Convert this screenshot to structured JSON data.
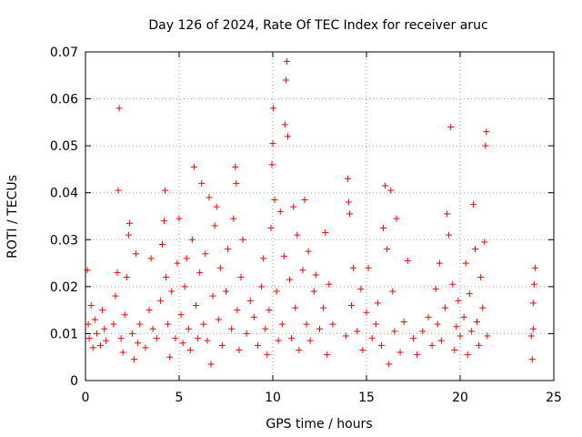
{
  "chart_data": {
    "type": "scatter",
    "title": "Day 126 of 2024, Rate Of TEC Index for receiver aruc",
    "xlabel": "GPS time / hours",
    "ylabel": "ROTI / TECUs",
    "xlim": [
      0,
      25
    ],
    "ylim": [
      0,
      0.07
    ],
    "xticks": [
      "0",
      "5",
      "10",
      "15",
      "20",
      "25"
    ],
    "yticks": [
      "0",
      "0.01",
      "0.02",
      "0.03",
      "0.04",
      "0.05",
      "0.06",
      "0.07"
    ],
    "grid": true,
    "marker": "plus",
    "color": "#ff0000",
    "series": [
      {
        "points": [
          [
            0.1,
            0.0235
          ],
          [
            0.15,
            0.012
          ],
          [
            0.2,
            0.009
          ],
          [
            0.3,
            0.016
          ],
          [
            0.4,
            0.007
          ],
          [
            0.5,
            0.013
          ],
          [
            0.6,
            0.01
          ],
          [
            0.8,
            0.0075
          ],
          [
            0.9,
            0.015
          ],
          [
            1.0,
            0.011
          ],
          [
            1.1,
            0.0085
          ],
          [
            1.5,
            0.012
          ],
          [
            1.6,
            0.018
          ],
          [
            1.7,
            0.023
          ],
          [
            1.75,
            0.0405
          ],
          [
            1.8,
            0.058
          ],
          [
            1.9,
            0.009
          ],
          [
            2.0,
            0.006
          ],
          [
            2.1,
            0.014
          ],
          [
            2.2,
            0.022
          ],
          [
            2.3,
            0.031
          ],
          [
            2.35,
            0.0335
          ],
          [
            2.5,
            0.01
          ],
          [
            2.6,
            0.0045
          ],
          [
            2.7,
            0.027
          ],
          [
            2.8,
            0.008
          ],
          [
            2.9,
            0.012
          ],
          [
            3.2,
            0.007
          ],
          [
            3.4,
            0.015
          ],
          [
            3.5,
            0.026
          ],
          [
            3.6,
            0.011
          ],
          [
            3.8,
            0.009
          ],
          [
            4.0,
            0.017
          ],
          [
            4.1,
            0.029
          ],
          [
            4.2,
            0.034
          ],
          [
            4.25,
            0.0405
          ],
          [
            4.3,
            0.022
          ],
          [
            4.4,
            0.012
          ],
          [
            4.5,
            0.005
          ],
          [
            4.6,
            0.019
          ],
          [
            4.8,
            0.009
          ],
          [
            4.9,
            0.025
          ],
          [
            5.0,
            0.0345
          ],
          [
            5.1,
            0.014
          ],
          [
            5.2,
            0.008
          ],
          [
            5.3,
            0.02
          ],
          [
            5.4,
            0.026
          ],
          [
            5.5,
            0.011
          ],
          [
            5.6,
            0.0065
          ],
          [
            5.7,
            0.03
          ],
          [
            5.8,
            0.0455
          ],
          [
            5.9,
            0.016
          ],
          [
            6.0,
            0.009
          ],
          [
            6.1,
            0.023
          ],
          [
            6.2,
            0.042
          ],
          [
            6.3,
            0.012
          ],
          [
            6.4,
            0.027
          ],
          [
            6.5,
            0.0085
          ],
          [
            6.6,
            0.039
          ],
          [
            6.7,
            0.0035
          ],
          [
            6.8,
            0.018
          ],
          [
            6.9,
            0.033
          ],
          [
            7.0,
            0.037
          ],
          [
            7.1,
            0.013
          ],
          [
            7.2,
            0.024
          ],
          [
            7.3,
            0.0075
          ],
          [
            7.5,
            0.019
          ],
          [
            7.6,
            0.028
          ],
          [
            7.8,
            0.011
          ],
          [
            7.9,
            0.0345
          ],
          [
            8.0,
            0.0455
          ],
          [
            8.05,
            0.042
          ],
          [
            8.1,
            0.015
          ],
          [
            8.2,
            0.0065
          ],
          [
            8.3,
            0.022
          ],
          [
            8.4,
            0.03
          ],
          [
            8.6,
            0.01
          ],
          [
            8.8,
            0.017
          ],
          [
            9.0,
            0.0135
          ],
          [
            9.2,
            0.0075
          ],
          [
            9.4,
            0.02
          ],
          [
            9.5,
            0.026
          ],
          [
            9.6,
            0.011
          ],
          [
            9.7,
            0.0055
          ],
          [
            9.8,
            0.015
          ],
          [
            9.9,
            0.0325
          ],
          [
            9.95,
            0.046
          ],
          [
            10.0,
            0.0505
          ],
          [
            10.02,
            0.058
          ],
          [
            10.1,
            0.0385
          ],
          [
            10.2,
            0.019
          ],
          [
            10.3,
            0.0085
          ],
          [
            10.4,
            0.036
          ],
          [
            10.5,
            0.012
          ],
          [
            10.6,
            0.0265
          ],
          [
            10.65,
            0.0545
          ],
          [
            10.7,
            0.064
          ],
          [
            10.75,
            0.068
          ],
          [
            10.8,
            0.052
          ],
          [
            10.9,
            0.0215
          ],
          [
            11.0,
            0.009
          ],
          [
            11.1,
            0.037
          ],
          [
            11.2,
            0.0155
          ],
          [
            11.3,
            0.031
          ],
          [
            11.4,
            0.0065
          ],
          [
            11.6,
            0.0235
          ],
          [
            11.7,
            0.0385
          ],
          [
            11.8,
            0.012
          ],
          [
            11.9,
            0.0275
          ],
          [
            12.0,
            0.0085
          ],
          [
            12.2,
            0.019
          ],
          [
            12.3,
            0.0225
          ],
          [
            12.5,
            0.011
          ],
          [
            12.7,
            0.0155
          ],
          [
            12.8,
            0.0315
          ],
          [
            12.9,
            0.0055
          ],
          [
            13.0,
            0.0205
          ],
          [
            13.2,
            0.012
          ],
          [
            13.9,
            0.0095
          ],
          [
            14.0,
            0.043
          ],
          [
            14.05,
            0.038
          ],
          [
            14.1,
            0.0355
          ],
          [
            14.2,
            0.016
          ],
          [
            14.3,
            0.024
          ],
          [
            14.5,
            0.0105
          ],
          [
            14.7,
            0.0195
          ],
          [
            14.8,
            0.0065
          ],
          [
            15.0,
            0.0145
          ],
          [
            15.1,
            0.024
          ],
          [
            15.3,
            0.009
          ],
          [
            15.5,
            0.012
          ],
          [
            15.6,
            0.0165
          ],
          [
            15.8,
            0.0075
          ],
          [
            15.9,
            0.0325
          ],
          [
            16.0,
            0.0415
          ],
          [
            16.1,
            0.028
          ],
          [
            16.2,
            0.0035
          ],
          [
            16.3,
            0.0405
          ],
          [
            16.4,
            0.019
          ],
          [
            16.5,
            0.0105
          ],
          [
            16.6,
            0.0345
          ],
          [
            16.8,
            0.006
          ],
          [
            17.0,
            0.0125
          ],
          [
            17.2,
            0.0255
          ],
          [
            17.5,
            0.009
          ],
          [
            17.7,
            0.0055
          ],
          [
            18.0,
            0.0105
          ],
          [
            18.3,
            0.0135
          ],
          [
            18.5,
            0.0075
          ],
          [
            18.7,
            0.0195
          ],
          [
            18.8,
            0.012
          ],
          [
            18.9,
            0.025
          ],
          [
            19.0,
            0.0085
          ],
          [
            19.2,
            0.0155
          ],
          [
            19.3,
            0.0355
          ],
          [
            19.4,
            0.031
          ],
          [
            19.5,
            0.054
          ],
          [
            19.6,
            0.0205
          ],
          [
            19.7,
            0.0065
          ],
          [
            19.8,
            0.0115
          ],
          [
            19.9,
            0.017
          ],
          [
            20.0,
            0.0095
          ],
          [
            20.2,
            0.0135
          ],
          [
            20.3,
            0.025
          ],
          [
            20.4,
            0.0055
          ],
          [
            20.5,
            0.0185
          ],
          [
            20.6,
            0.0105
          ],
          [
            20.7,
            0.0375
          ],
          [
            20.8,
            0.028
          ],
          [
            20.9,
            0.0125
          ],
          [
            21.0,
            0.0075
          ],
          [
            21.1,
            0.022
          ],
          [
            21.2,
            0.0155
          ],
          [
            21.3,
            0.0295
          ],
          [
            21.35,
            0.05
          ],
          [
            21.4,
            0.053
          ],
          [
            21.45,
            0.0095
          ],
          [
            23.8,
            0.0095
          ],
          [
            23.85,
            0.0045
          ],
          [
            23.9,
            0.0165
          ],
          [
            23.95,
            0.0205
          ],
          [
            24.0,
            0.024
          ],
          [
            23.9,
            0.011
          ]
        ]
      }
    ]
  }
}
